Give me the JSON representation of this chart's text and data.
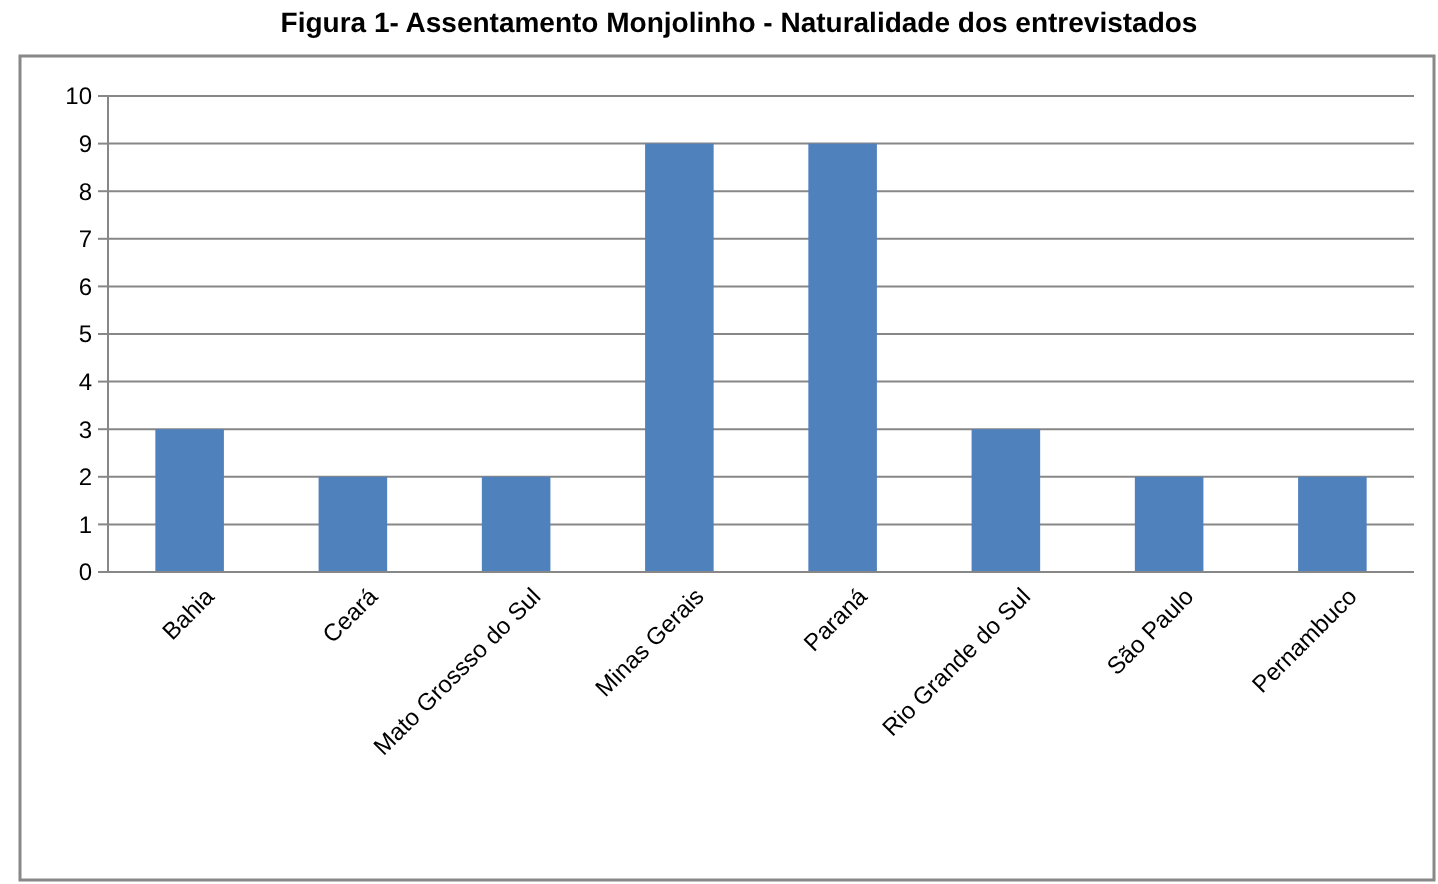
{
  "chart_data": {
    "type": "bar",
    "title": "Figura 1- Assentamento Monjolinho - Naturalidade dos entrevistados",
    "categories": [
      "Bahia",
      "Ceará",
      "Mato Grossso do Sul",
      "Minas Gerais",
      "Paraná",
      "Rio Grande do Sul",
      "São Paulo",
      "Pernambuco"
    ],
    "values": [
      3,
      2,
      2,
      9,
      9,
      3,
      2,
      2
    ],
    "color": "#4f81bd",
    "ylim": [
      0,
      10
    ],
    "yticks": [
      0,
      1,
      2,
      3,
      4,
      5,
      6,
      7,
      8,
      9,
      10
    ],
    "grid": "y"
  }
}
